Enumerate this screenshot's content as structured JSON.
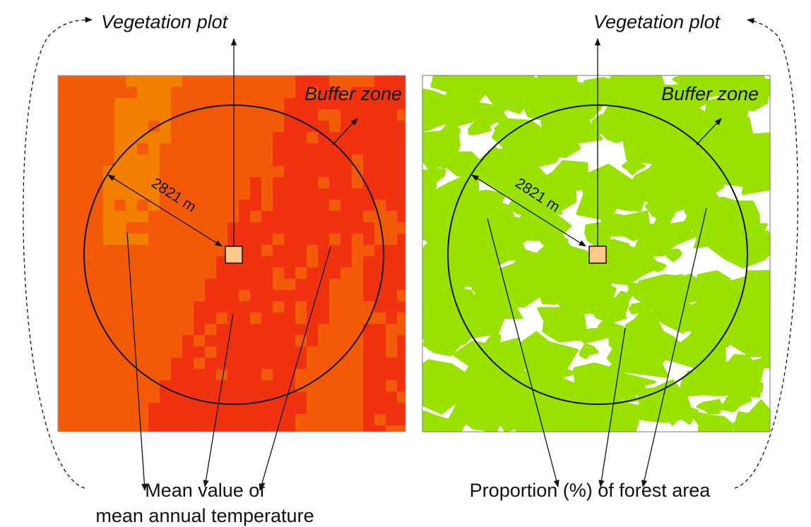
{
  "panels": [
    {
      "plot_label": "Vegetation plot",
      "buffer_label": "Buffer zone",
      "radius_label": "2821 m",
      "caption": [
        "Mean value of",
        "mean annual temperature"
      ]
    },
    {
      "plot_label": "Vegetation plot",
      "buffer_label": "Buffer zone",
      "radius_label": "2821 m",
      "caption": [
        "Proportion (%) of forest area"
      ]
    }
  ]
}
